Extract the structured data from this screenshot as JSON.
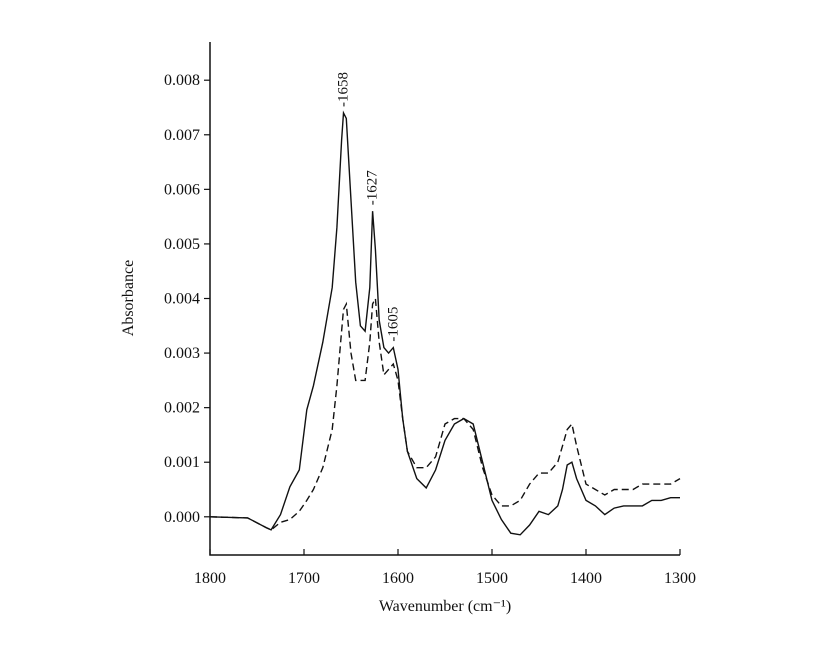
{
  "chart_data": {
    "type": "line",
    "xlabel": "Wavenumber (cm⁻¹)",
    "ylabel": "Absorbance",
    "x": [
      1800,
      1760,
      1740,
      1735,
      1725,
      1715,
      1705,
      1697,
      1690,
      1680,
      1670,
      1665,
      1660,
      1658,
      1655,
      1650,
      1645,
      1640,
      1635,
      1630,
      1627,
      1624,
      1620,
      1615,
      1610,
      1605,
      1600,
      1595,
      1590,
      1580,
      1570,
      1560,
      1550,
      1540,
      1530,
      1520,
      1510,
      1500,
      1490,
      1480,
      1470,
      1460,
      1450,
      1440,
      1430,
      1425,
      1420,
      1415,
      1410,
      1400,
      1390,
      1380,
      1370,
      1360,
      1350,
      1340,
      1330,
      1320,
      1310,
      1300
    ],
    "series": [
      {
        "color": "#111111",
        "linestyle": "solid",
        "values": [
          0,
          -2e-05,
          -0.0002,
          -0.00024,
          4e-05,
          0.00055,
          0.00086,
          0.00196,
          0.0024,
          0.0032,
          0.0042,
          0.0053,
          0.0069,
          0.0074,
          0.0073,
          0.0058,
          0.0043,
          0.0035,
          0.0034,
          0.0042,
          0.0056,
          0.0049,
          0.0036,
          0.0031,
          0.003,
          0.0031,
          0.0027,
          0.0018,
          0.0012,
          0.0007,
          0.00053,
          0.00086,
          0.0014,
          0.0017,
          0.0018,
          0.0017,
          0.001,
          0.0003,
          -5e-05,
          -0.0003,
          -0.00033,
          -0.00015,
          0.0001,
          4e-05,
          0.0002,
          0.0005,
          0.00095,
          0.001,
          0.0007,
          0.0003,
          0.0002,
          4e-05,
          0.00016,
          0.0002,
          0.0002,
          0.0002,
          0.0003,
          0.0003,
          0.00035,
          0.00035
        ]
      },
      {
        "color": "#111111",
        "linestyle": "dashed",
        "values": [
          0,
          -2e-05,
          -0.0002,
          -0.00024,
          -0.0001,
          -5e-05,
          0.0001,
          0.0003,
          0.0005,
          0.0009,
          0.0016,
          0.0024,
          0.0034,
          0.0038,
          0.0039,
          0.003,
          0.0025,
          0.0025,
          0.0025,
          0.0032,
          0.0039,
          0.004,
          0.0032,
          0.0026,
          0.0027,
          0.0028,
          0.0025,
          0.0018,
          0.0012,
          0.0009,
          0.0009,
          0.0011,
          0.0017,
          0.0018,
          0.0018,
          0.0016,
          0.0009,
          0.0004,
          0.0002,
          0.0002,
          0.0003,
          0.0006,
          0.0008,
          0.0008,
          0.001,
          0.0013,
          0.0016,
          0.0017,
          0.0013,
          0.0006,
          0.0005,
          0.0004,
          0.0005,
          0.0005,
          0.0005,
          0.0006,
          0.0006,
          0.0006,
          0.0006,
          0.0007
        ]
      }
    ],
    "annotations": [
      {
        "text": "-1658",
        "x": 1658
      },
      {
        "text": "-1627",
        "x": 1627
      },
      {
        "text": "-1605",
        "x": 1605
      }
    ],
    "xlim": [
      1800,
      1300
    ],
    "ylim": [
      -0.0007,
      0.0087
    ],
    "xticks": [
      1800,
      1700,
      1600,
      1500,
      1400,
      1300
    ],
    "yticks": [
      {
        "value": 0,
        "label": "0.000"
      },
      {
        "value": 0.001,
        "label": "0.001"
      },
      {
        "value": 0.002,
        "label": "0.002"
      },
      {
        "value": 0.003,
        "label": "0.003"
      },
      {
        "value": 0.004,
        "label": "0.004"
      },
      {
        "value": 0.005,
        "label": "0.005"
      },
      {
        "value": 0.006,
        "label": "0.006"
      },
      {
        "value": 0.007,
        "label": "0.007"
      },
      {
        "value": 0.008,
        "label": "0.008"
      }
    ]
  }
}
